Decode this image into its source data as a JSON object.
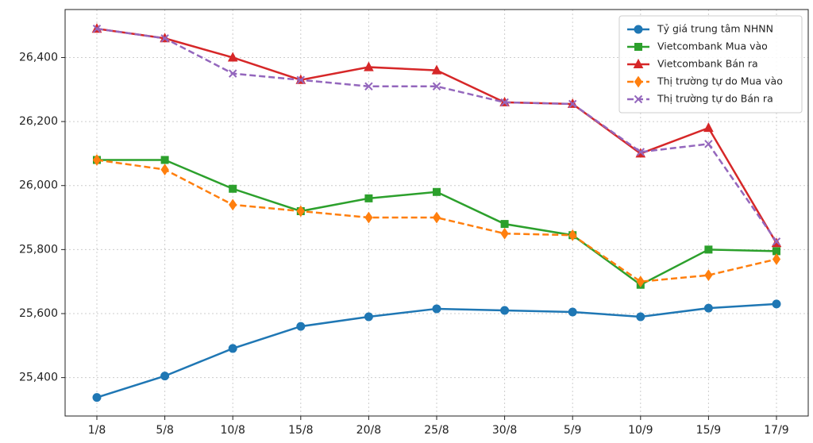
{
  "chart_data": {
    "type": "line",
    "categories": [
      "1/8",
      "5/8",
      "10/8",
      "15/8",
      "20/8",
      "25/8",
      "30/8",
      "5/9",
      "10/9",
      "15/9",
      "17/9"
    ],
    "series": [
      {
        "name": "Tỷ giá trung tâm NHNN",
        "color": "#1f77b4",
        "marker": "circle",
        "dashed": false,
        "values": [
          25338,
          25405,
          25491,
          25560,
          25590,
          25615,
          25610,
          25605,
          25590,
          25617,
          25630
        ]
      },
      {
        "name": "Vietcombank Mua vào",
        "color": "#2ca02c",
        "marker": "square",
        "dashed": false,
        "values": [
          26080,
          26080,
          25990,
          25920,
          25960,
          25980,
          25880,
          25845,
          25690,
          25800,
          25795
        ]
      },
      {
        "name": "Vietcombank Bán ra",
        "color": "#d62728",
        "marker": "triangle",
        "dashed": false,
        "values": [
          26490,
          26460,
          26400,
          26330,
          26370,
          26360,
          26260,
          26255,
          26100,
          26180,
          25820
        ]
      },
      {
        "name": "Thị trường tự do Mua vào",
        "color": "#ff7f0e",
        "marker": "diamond",
        "dashed": true,
        "values": [
          26080,
          26050,
          25940,
          25920,
          25900,
          25900,
          25850,
          25845,
          25700,
          25720,
          25770
        ]
      },
      {
        "name": "Thị trường tự do Bán ra",
        "color": "#9467bd",
        "marker": "x",
        "dashed": true,
        "values": [
          26490,
          26460,
          26350,
          26330,
          26310,
          26310,
          26260,
          26255,
          26105,
          26130,
          25825
        ]
      }
    ],
    "ylim": [
      25280,
      26550
    ],
    "yticks": [
      {
        "value": 25400,
        "label": "25,400"
      },
      {
        "value": 25600,
        "label": "25,600"
      },
      {
        "value": 25800,
        "label": "25,800"
      },
      {
        "value": 26000,
        "label": "26,000"
      },
      {
        "value": 26200,
        "label": "26,200"
      },
      {
        "value": 26400,
        "label": "26,400"
      }
    ],
    "grid": true,
    "legend": "upper right"
  }
}
